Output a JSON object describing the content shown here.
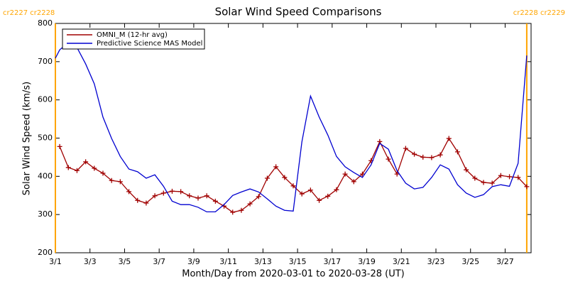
{
  "chart_data": {
    "type": "line",
    "title": "Solar Wind Speed Comparisons",
    "xlabel": "Month/Day from 2020-03-01 to 2020-03-28 (UT)",
    "ylabel": "Solar Wind Speed (km/s)",
    "annotations": [
      {
        "text": "cr2227 cr2228",
        "x": 1
      },
      {
        "text": "cr2228 cr2229",
        "x": 28.25
      }
    ],
    "boundary_color": "#ffa500",
    "xlim": [
      1,
      28.5
    ],
    "ylim": [
      200,
      800
    ],
    "xticks": [
      {
        "value": 1,
        "label": "3/1"
      },
      {
        "value": 3,
        "label": "3/3"
      },
      {
        "value": 5,
        "label": "3/5"
      },
      {
        "value": 7,
        "label": "3/7"
      },
      {
        "value": 9,
        "label": "3/9"
      },
      {
        "value": 11,
        "label": "3/11"
      },
      {
        "value": 13,
        "label": "3/13"
      },
      {
        "value": 15,
        "label": "3/15"
      },
      {
        "value": 17,
        "label": "3/17"
      },
      {
        "value": 19,
        "label": "3/19"
      },
      {
        "value": 21,
        "label": "3/21"
      },
      {
        "value": 23,
        "label": "3/23"
      },
      {
        "value": 25,
        "label": "3/25"
      },
      {
        "value": 27,
        "label": "3/27"
      }
    ],
    "yticks": [
      200,
      300,
      400,
      500,
      600,
      700,
      800
    ],
    "legend": "upper left",
    "series": [
      {
        "name": "OMNI_M (12-hr avg)",
        "color": "#a00000",
        "marker": "+",
        "x": [
          1.25,
          1.75,
          2.25,
          2.75,
          3.25,
          3.75,
          4.25,
          4.75,
          5.25,
          5.75,
          6.25,
          6.75,
          7.25,
          7.75,
          8.25,
          8.75,
          9.25,
          9.75,
          10.25,
          10.75,
          11.25,
          11.75,
          12.25,
          12.75,
          13.25,
          13.75,
          14.25,
          14.75,
          15.25,
          15.75,
          16.25,
          16.75,
          17.25,
          17.75,
          18.25,
          18.75,
          19.25,
          19.75,
          20.25,
          20.75,
          21.25,
          21.75,
          22.25,
          22.75,
          23.25,
          23.75,
          24.25,
          24.75,
          25.25,
          25.75,
          26.25,
          26.75,
          27.25,
          27.75,
          28.25
        ],
        "values": [
          478,
          423,
          415,
          438,
          421,
          408,
          389,
          386,
          360,
          337,
          330,
          349,
          356,
          361,
          360,
          349,
          343,
          349,
          335,
          322,
          306,
          311,
          328,
          347,
          395,
          425,
          397,
          375,
          354,
          364,
          337,
          348,
          365,
          406,
          386,
          406,
          441,
          491,
          445,
          406,
          473,
          458,
          450,
          449,
          456,
          499,
          464,
          417,
          395,
          384,
          382,
          402,
          399,
          397,
          373
        ]
      },
      {
        "name": "Predictive Science MAS Model",
        "color": "#0000d0",
        "x": [
          1,
          1.25,
          1.75,
          2.25,
          2.75,
          3.25,
          3.75,
          4.25,
          4.75,
          5.25,
          5.75,
          6.25,
          6.75,
          7.25,
          7.75,
          8.25,
          8.75,
          9.25,
          9.75,
          10.25,
          10.75,
          11.25,
          11.75,
          12.25,
          12.75,
          13.25,
          13.75,
          14.25,
          14.75,
          15.25,
          15.75,
          16.25,
          16.75,
          17.25,
          17.75,
          18.25,
          18.75,
          19.25,
          19.75,
          20.25,
          20.75,
          21.25,
          21.75,
          22.25,
          22.75,
          23.25,
          23.75,
          24.25,
          24.75,
          25.25,
          25.75,
          26.25,
          26.75,
          27.25,
          27.75,
          28.25
        ],
        "values": [
          709,
          731,
          750,
          737,
          694,
          642,
          555,
          499,
          452,
          419,
          412,
          395,
          404,
          374,
          335,
          326,
          326,
          319,
          307,
          307,
          326,
          350,
          359,
          367,
          359,
          341,
          322,
          311,
          309,
          490,
          610,
          555,
          508,
          452,
          425,
          410,
          397,
          430,
          486,
          471,
          415,
          382,
          367,
          371,
          397,
          430,
          419,
          378,
          356,
          345,
          352,
          373,
          378,
          374,
          434,
          716
        ]
      }
    ]
  }
}
